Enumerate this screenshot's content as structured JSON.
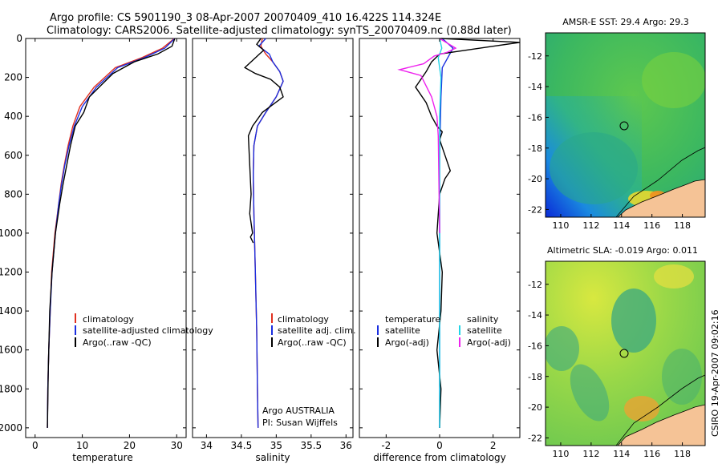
{
  "figure": {
    "title_line1": "Argo profile: CS 5901190_3 08-Apr-2007 20070409_410 16.422S 114.324E",
    "title_line2": "Climatology: CARS2006. Satellite-adjusted climatology: synTS_20070409.nc (0.88d later)",
    "side_label": "CSIRO 19-Apr-2007 09:02:16"
  },
  "colors": {
    "climatology": "#e03020",
    "satellite": "#1a2ee0",
    "argo": "#000000",
    "salinity_satellite": "#22d4e6",
    "salinity_argo": "#ee22ee",
    "land": "#f5c396"
  },
  "chart_data": [
    {
      "type": "line",
      "id": "temperature",
      "xlabel": "temperature",
      "xlim": [
        -2,
        32
      ],
      "ylim": [
        2050,
        0
      ],
      "xticks": [
        0,
        10,
        20,
        30
      ],
      "yticks": [
        0,
        200,
        400,
        600,
        800,
        1000,
        1200,
        1400,
        1600,
        1800,
        2000
      ],
      "legend": [
        "climatology",
        "satellite-adjusted climatology",
        "Argo(..raw -QC)"
      ],
      "series": [
        {
          "name": "climatology",
          "color": "#e03020",
          "x": [
            29.5,
            27.0,
            22.5,
            17.0,
            12.5,
            9.5,
            8.0,
            7.0,
            6.2,
            5.5,
            5.0,
            4.2,
            3.5,
            3.2,
            2.9,
            2.7,
            2.6
          ],
          "y": [
            0,
            50,
            100,
            150,
            250,
            350,
            450,
            550,
            650,
            750,
            850,
            1000,
            1200,
            1400,
            1600,
            1800,
            2000
          ]
        },
        {
          "name": "satellite-adjusted climatology",
          "color": "#1a2ee0",
          "x": [
            29.6,
            27.5,
            23.0,
            17.5,
            13.0,
            10.0,
            8.3,
            7.2,
            6.3,
            5.6,
            5.0,
            4.3,
            3.6,
            3.2,
            2.9,
            2.7,
            2.6
          ],
          "y": [
            0,
            50,
            100,
            150,
            250,
            350,
            450,
            550,
            650,
            750,
            850,
            1000,
            1200,
            1400,
            1600,
            1800,
            2000
          ]
        },
        {
          "name": "Argo(..raw -QC)",
          "color": "#000000",
          "x": [
            29.6,
            29.0,
            26.0,
            21.0,
            16.5,
            11.5,
            10.3,
            8.5,
            7.5,
            6.7,
            5.9,
            5.2,
            4.3,
            3.6,
            3.1,
            2.8,
            2.6
          ],
          "y": [
            0,
            40,
            80,
            120,
            180,
            300,
            380,
            450,
            550,
            650,
            750,
            850,
            1000,
            1200,
            1400,
            1700,
            2000
          ]
        }
      ]
    },
    {
      "type": "line",
      "id": "salinity",
      "xlabel": "salinity",
      "xlim": [
        33.8,
        36.1
      ],
      "ylim": [
        2050,
        0
      ],
      "xticks": [
        34,
        34.5,
        35,
        35.5,
        36
      ],
      "legend": [
        "climatology",
        "satellite adj. clim.",
        "Argo(..raw -QC)"
      ],
      "annotation": [
        "Argo AUSTRALIA",
        "PI: Susan Wijffels"
      ],
      "series": [
        {
          "name": "climatology",
          "color": "#e03020",
          "x": [
            34.8,
            34.78,
            34.85,
            34.95,
            35.05,
            35.1,
            35.0,
            34.85,
            34.73,
            34.68,
            34.67,
            34.68,
            34.7,
            34.72,
            34.73,
            34.74
          ],
          "y": [
            0,
            40,
            80,
            120,
            170,
            220,
            300,
            380,
            450,
            550,
            700,
            900,
            1200,
            1500,
            1800,
            2000
          ]
        },
        {
          "name": "satellite adj. clim.",
          "color": "#1a2ee0",
          "x": [
            34.85,
            34.75,
            34.9,
            34.95,
            35.05,
            35.1,
            35.0,
            34.85,
            34.73,
            34.68,
            34.67,
            34.68,
            34.7,
            34.72,
            34.73,
            34.74
          ],
          "y": [
            0,
            40,
            80,
            120,
            170,
            220,
            300,
            380,
            450,
            550,
            700,
            900,
            1200,
            1500,
            1800,
            2000
          ]
        },
        {
          "name": "Argo(..raw -QC)",
          "color": "#000000",
          "x": [
            34.78,
            34.72,
            34.82,
            34.76,
            34.55,
            34.7,
            34.92,
            35.05,
            35.1,
            34.95,
            34.8,
            34.66,
            34.6,
            34.62,
            34.64,
            34.62,
            34.66,
            34.63,
            34.67
          ],
          "y": [
            0,
            30,
            60,
            80,
            150,
            180,
            210,
            250,
            300,
            340,
            380,
            450,
            500,
            650,
            800,
            900,
            1000,
            1020,
            1050
          ]
        }
      ]
    },
    {
      "type": "line",
      "id": "difference",
      "xlabel": "difference from climatology",
      "xlim": [
        -3.0,
        3.0
      ],
      "ylim": [
        2050,
        0
      ],
      "xticks": [
        -2,
        0,
        2
      ],
      "legend_left": [
        "temperature",
        "satellite",
        "Argo(-adj)"
      ],
      "legend_right": [
        "salinity",
        "satellite",
        "Argo(-adj)"
      ],
      "series": [
        {
          "name": "temperature satellite",
          "color": "#1a2ee0",
          "x": [
            0.1,
            0.5,
            0.3,
            0.1,
            0.05,
            0.0,
            0.0,
            0.0
          ],
          "y": [
            0,
            50,
            100,
            150,
            300,
            600,
            1200,
            2000
          ]
        },
        {
          "name": "temperature Argo(-adj)",
          "color": "#000000",
          "x": [
            0.05,
            3.0,
            2.0,
            1.0,
            0.0,
            -0.3,
            -0.5,
            -0.9,
            -0.5,
            -0.3,
            -0.1,
            0.1,
            0.0,
            0.2,
            0.4,
            0.2,
            0.0,
            -0.1,
            0.1,
            0.05,
            -0.1,
            0.05,
            0.0
          ],
          "y": [
            0,
            20,
            40,
            60,
            80,
            120,
            170,
            250,
            330,
            400,
            450,
            480,
            520,
            600,
            680,
            720,
            800,
            1000,
            1200,
            1400,
            1600,
            1800,
            2000
          ]
        },
        {
          "name": "salinity satellite",
          "color": "#22d4e6",
          "x": [
            0.0,
            0.08,
            -0.05,
            0.05,
            0.0,
            0.0,
            0.0,
            0.0
          ],
          "y": [
            0,
            50,
            100,
            200,
            400,
            800,
            1400,
            2000
          ]
        },
        {
          "name": "salinity Argo(-adj)",
          "color": "#ee22ee",
          "x": [
            0.0,
            0.6,
            0.3,
            -0.2,
            -0.6,
            -1.5,
            -0.7,
            -0.3,
            -0.1,
            -0.05,
            0.0
          ],
          "y": [
            0,
            50,
            70,
            90,
            130,
            160,
            190,
            300,
            400,
            500,
            1000
          ]
        }
      ]
    },
    {
      "type": "heatmap",
      "id": "sst-map",
      "title": "AMSR-E SST: 29.4 Argo: 29.3",
      "xlim": [
        109,
        119.5
      ],
      "ylim": [
        -22.5,
        -10.5
      ],
      "xticks": [
        "110",
        "112",
        "114",
        "116",
        "118"
      ],
      "yticks": [
        "-12",
        "-14",
        "-16",
        "-18",
        "-20",
        "-22"
      ],
      "marker": {
        "lon": 114.324,
        "lat": -16.422
      }
    },
    {
      "type": "heatmap",
      "id": "sla-map",
      "title": "Altimetric SLA: -0.019 Argo: 0.011",
      "xlim": [
        109,
        119.5
      ],
      "ylim": [
        -22.5,
        -10.5
      ],
      "xticks": [
        "110",
        "112",
        "114",
        "116",
        "118"
      ],
      "yticks": [
        "-12",
        "-14",
        "-16",
        "-18",
        "-20",
        "-22"
      ],
      "marker": {
        "lon": 114.324,
        "lat": -16.422
      }
    }
  ]
}
